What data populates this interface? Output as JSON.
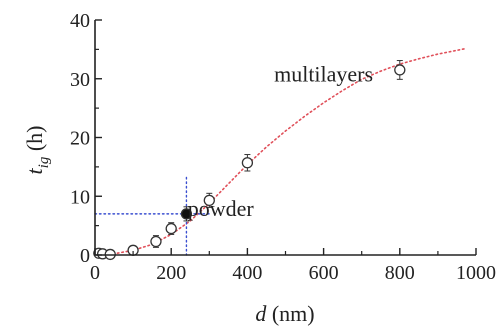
{
  "chart_data": {
    "type": "scatter",
    "xlabel": {
      "var": "d",
      "unit": " (nm)"
    },
    "ylabel": {
      "var": "t",
      "sub": "ig",
      "unit": " (h)"
    },
    "xlim": [
      0,
      1000
    ],
    "ylim": [
      0,
      40
    ],
    "x_ticks": [
      0,
      200,
      400,
      600,
      800,
      1000
    ],
    "y_ticks": [
      0,
      10,
      20,
      30,
      40
    ],
    "grid": false,
    "series": [
      {
        "marker": "open-circle",
        "points": [
          {
            "x": 10,
            "y": 0.3,
            "err": 0.5
          },
          {
            "x": 20,
            "y": 0.2,
            "err": 0.5
          },
          {
            "x": 40,
            "y": 0.1,
            "err": 0.4
          },
          {
            "x": 100,
            "y": 0.8,
            "err": 0.7
          },
          {
            "x": 160,
            "y": 2.3,
            "err": 1.0
          },
          {
            "x": 200,
            "y": 4.5,
            "err": 1.0
          },
          {
            "x": 300,
            "y": 9.3,
            "err": 1.2
          },
          {
            "x": 400,
            "y": 15.7,
            "err": 1.4
          },
          {
            "x": 800,
            "y": 31.5,
            "err": 1.6
          }
        ]
      },
      {
        "marker": "filled-circle",
        "points": [
          {
            "x": 240,
            "y": 7.0,
            "err": 1.2
          }
        ]
      }
    ],
    "fit_curve": {
      "color": "#e0505a",
      "style": "dotted",
      "points": [
        [
          0,
          0
        ],
        [
          50,
          0.2
        ],
        [
          100,
          0.8
        ],
        [
          150,
          1.8
        ],
        [
          200,
          3.5
        ],
        [
          250,
          5.8
        ],
        [
          300,
          8.8
        ],
        [
          350,
          12.1
        ],
        [
          400,
          15.4
        ],
        [
          450,
          18.4
        ],
        [
          500,
          21.1
        ],
        [
          550,
          23.6
        ],
        [
          600,
          25.9
        ],
        [
          650,
          28.0
        ],
        [
          700,
          29.9
        ],
        [
          750,
          31.3
        ],
        [
          800,
          32.5
        ],
        [
          850,
          33.4
        ],
        [
          900,
          34.2
        ],
        [
          970,
          35.1
        ]
      ]
    },
    "guide_lines": {
      "color": "#3a4fd0",
      "x": 240,
      "y": 7.0
    },
    "annotations": [
      {
        "text": "multilayers",
        "x": 600,
        "y": 29.5
      },
      {
        "text": "powder",
        "x": 330,
        "y": 6.6
      }
    ]
  }
}
